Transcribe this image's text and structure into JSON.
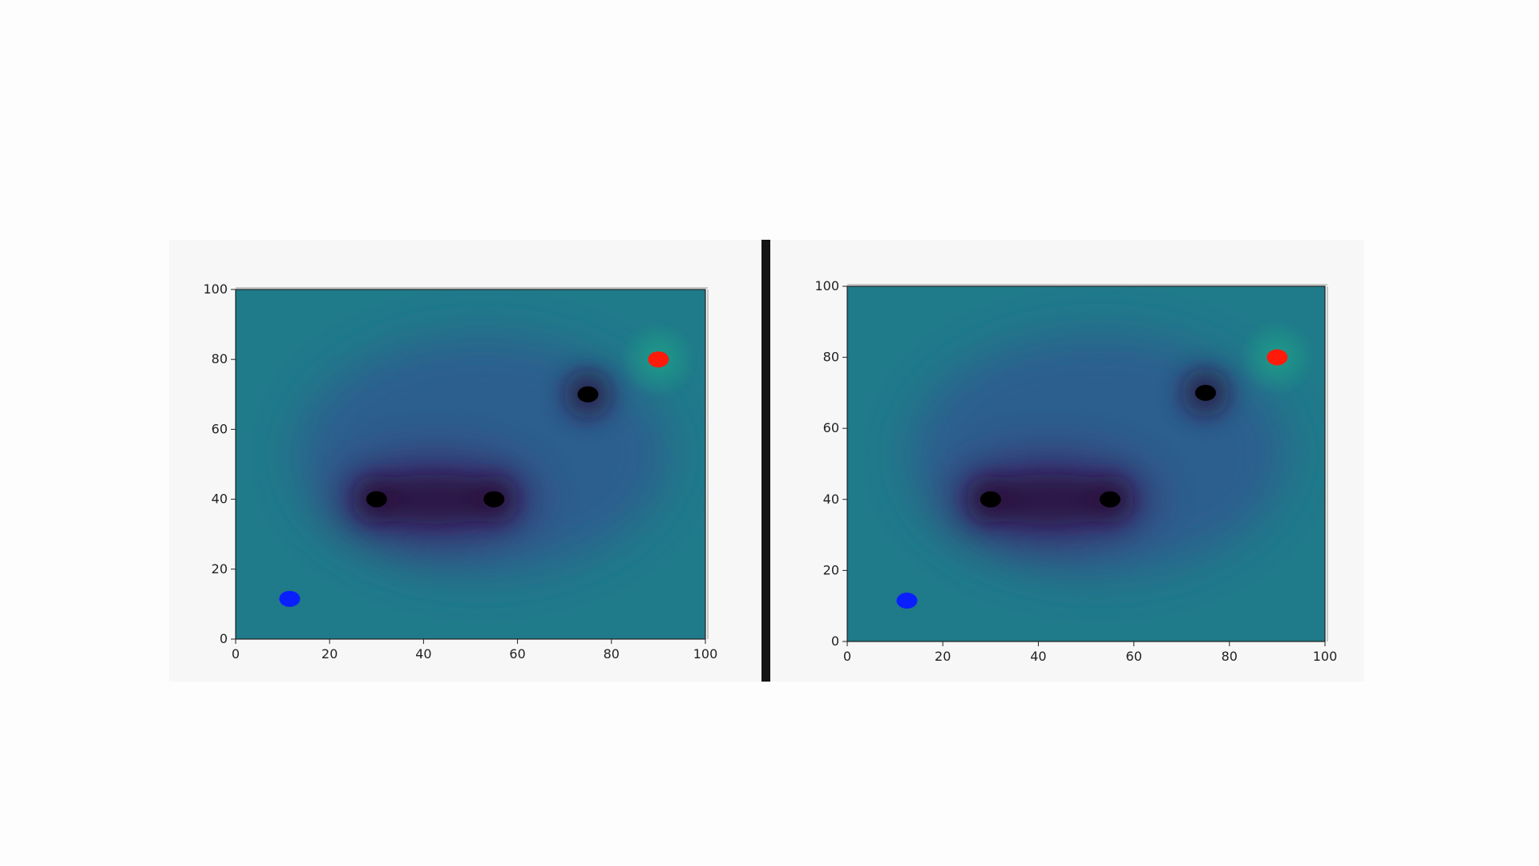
{
  "colors": {
    "field_base": "#1f7a8a",
    "field_mid": "#2e5a8e",
    "field_low": "#3a2a6e",
    "field_deep": "#2a0f3a",
    "goal_glow": "#1fa088",
    "obstacle": "#000000",
    "start": "#0a1fff",
    "goal": "#ff1a0a",
    "axis": "#222222",
    "divider": "#141414"
  },
  "chart_data": [
    {
      "type": "heatmap",
      "title": "",
      "xlabel": "",
      "ylabel": "",
      "xlim": [
        0,
        100
      ],
      "ylim": [
        0,
        100
      ],
      "xticks": [
        "0",
        "20",
        "40",
        "60",
        "80",
        "100"
      ],
      "yticks": [
        "0",
        "20",
        "40",
        "60",
        "80",
        "100"
      ],
      "grid": false,
      "obstacles": [
        {
          "x": 30,
          "y": 40
        },
        {
          "x": 55,
          "y": 40
        },
        {
          "x": 75,
          "y": 70
        }
      ],
      "start": {
        "x": 11.5,
        "y": 11.5
      },
      "goal": {
        "x": 90,
        "y": 80
      }
    },
    {
      "type": "heatmap",
      "title": "",
      "xlabel": "",
      "ylabel": "",
      "xlim": [
        0,
        100
      ],
      "ylim": [
        0,
        100
      ],
      "xticks": [
        "0",
        "20",
        "40",
        "60",
        "80",
        "100"
      ],
      "yticks": [
        "0",
        "20",
        "40",
        "60",
        "80",
        "100"
      ],
      "grid": false,
      "obstacles": [
        {
          "x": 30,
          "y": 40
        },
        {
          "x": 55,
          "y": 40
        },
        {
          "x": 75,
          "y": 70
        }
      ],
      "start": {
        "x": 12.5,
        "y": 11.5
      },
      "goal": {
        "x": 90,
        "y": 80
      }
    }
  ]
}
